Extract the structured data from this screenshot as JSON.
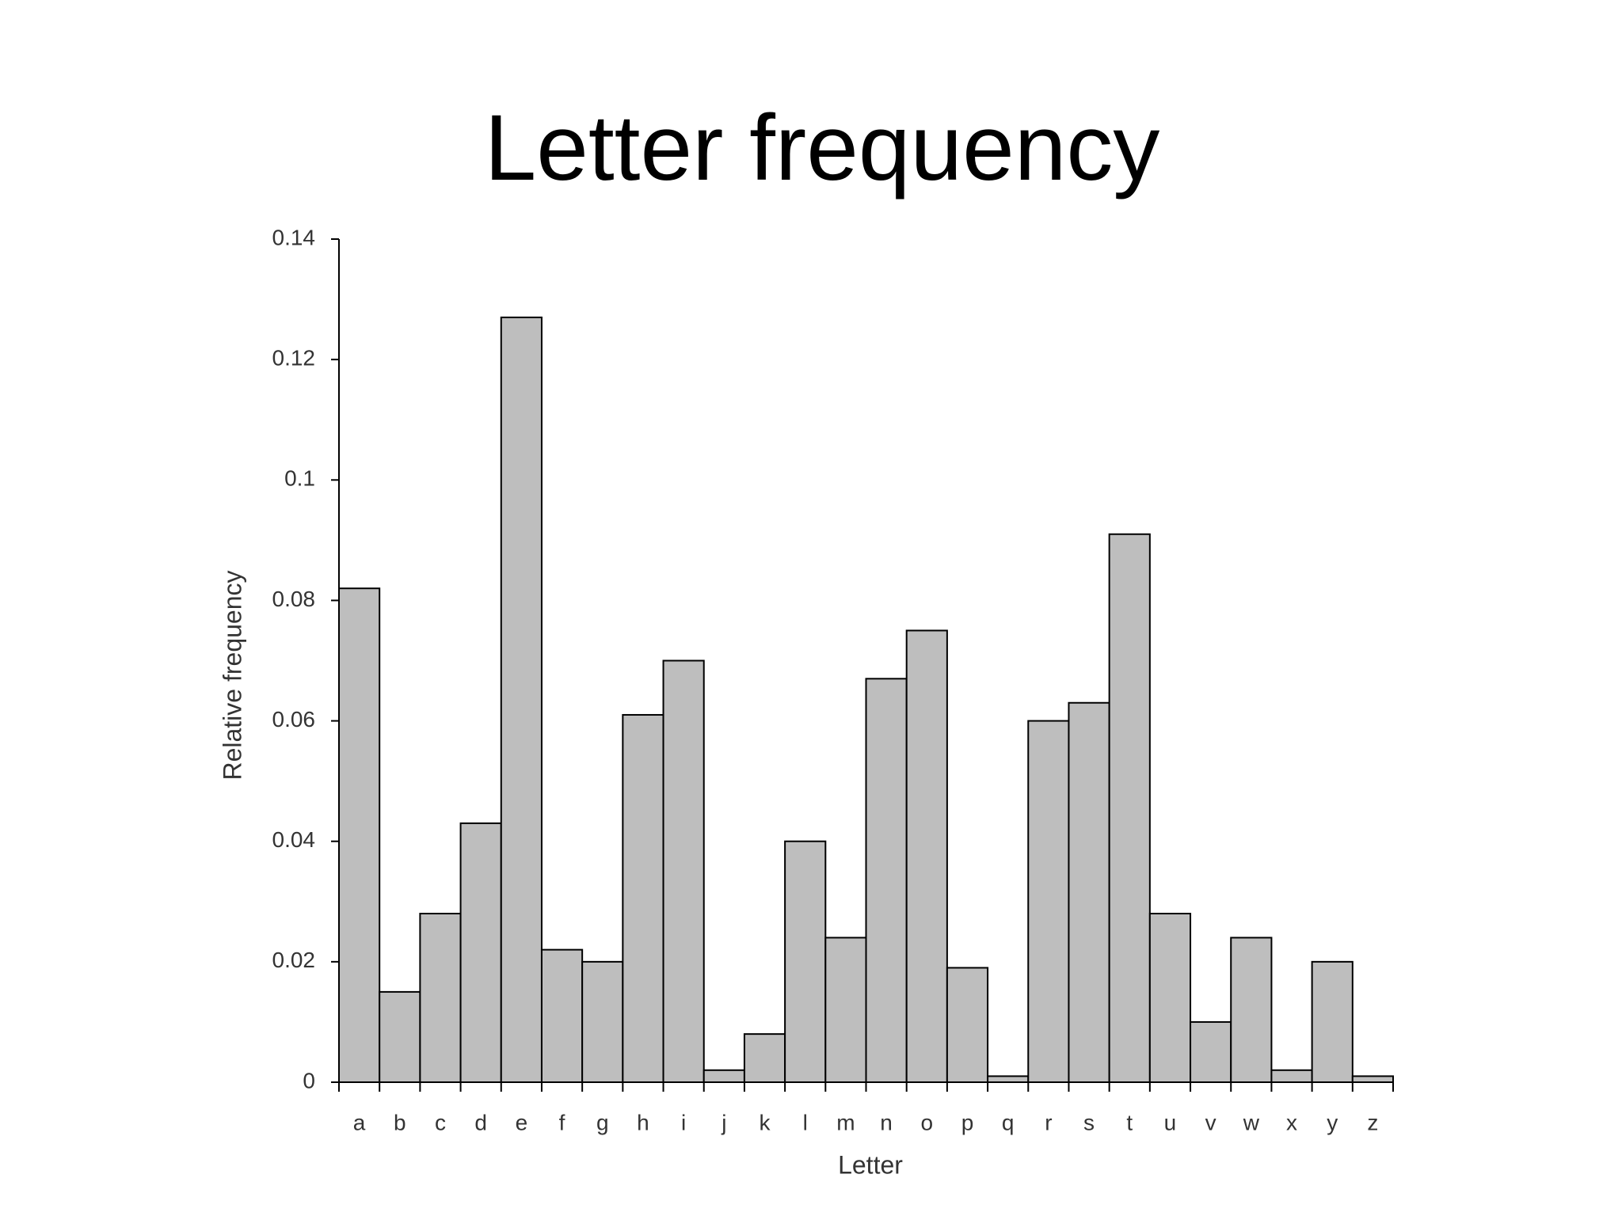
{
  "chart_data": {
    "type": "bar",
    "title": "Letter frequency",
    "x_label": "Letter",
    "y_label": "Relative frequency",
    "categories": [
      "a",
      "b",
      "c",
      "d",
      "e",
      "f",
      "g",
      "h",
      "i",
      "j",
      "k",
      "l",
      "m",
      "n",
      "o",
      "p",
      "q",
      "r",
      "s",
      "t",
      "u",
      "v",
      "w",
      "x",
      "y",
      "z"
    ],
    "values": [
      0.082,
      0.015,
      0.028,
      0.043,
      0.127,
      0.022,
      0.02,
      0.061,
      0.07,
      0.002,
      0.008,
      0.04,
      0.024,
      0.067,
      0.075,
      0.019,
      0.001,
      0.06,
      0.063,
      0.091,
      0.028,
      0.01,
      0.024,
      0.002,
      0.02,
      0.001
    ],
    "color": "#bebebe",
    "ylim": [
      0,
      0.14
    ],
    "yticks": [
      0,
      0.02,
      0.04,
      0.06,
      0.08,
      0.1,
      0.12,
      0.14
    ],
    "grid": false
  }
}
